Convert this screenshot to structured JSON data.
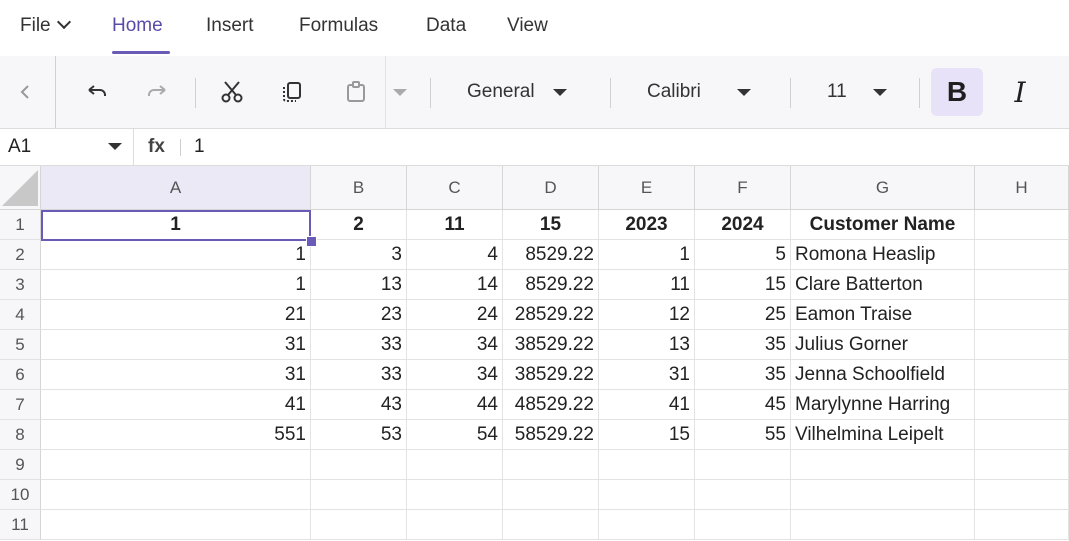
{
  "menu": {
    "file": "File",
    "tabs": [
      "Home",
      "Insert",
      "Formulas",
      "Data",
      "View"
    ],
    "active": "Home"
  },
  "toolbar": {
    "number_format": "General",
    "font_name": "Calibri",
    "font_size": "11",
    "bold_label": "B",
    "italic_label": "I",
    "icons": [
      "chevron-left-icon",
      "undo-icon",
      "redo-icon",
      "cut-icon",
      "copy-icon",
      "paste-icon"
    ]
  },
  "formula_bar": {
    "cell_ref": "A1",
    "fx_label": "fx",
    "value": "1"
  },
  "sheet": {
    "columns": [
      "A",
      "B",
      "C",
      "D",
      "E",
      "F",
      "G",
      "H"
    ],
    "rows": [
      "1",
      "2",
      "3",
      "4",
      "5",
      "6",
      "7",
      "8",
      "9",
      "10",
      "11"
    ],
    "header_row": [
      "1",
      "2",
      "11",
      "15",
      "2023",
      "2024",
      "Customer Name",
      ""
    ],
    "data": [
      [
        "1",
        "3",
        "4",
        "8529.22",
        "1",
        "5",
        "Romona Heaslip",
        ""
      ],
      [
        "1",
        "13",
        "14",
        "8529.22",
        "11",
        "15",
        "Clare Batterton",
        ""
      ],
      [
        "21",
        "23",
        "24",
        "28529.22",
        "12",
        "25",
        "Eamon Traise",
        ""
      ],
      [
        "31",
        "33",
        "34",
        "38529.22",
        "13",
        "35",
        "Julius Gorner",
        ""
      ],
      [
        "31",
        "33",
        "34",
        "38529.22",
        "31",
        "35",
        "Jenna Schoolfield",
        ""
      ],
      [
        "41",
        "43",
        "44",
        "48529.22",
        "41",
        "45",
        "Marylynne Harring",
        ""
      ],
      [
        "551",
        "53",
        "54",
        "58529.22",
        "15",
        "55",
        "Vilhelmina Leipelt",
        ""
      ],
      [
        "",
        "",
        "",
        "",
        "",
        "",
        "",
        ""
      ],
      [
        "",
        "",
        "",
        "",
        "",
        "",
        "",
        ""
      ],
      [
        "",
        "",
        "",
        "",
        "",
        "",
        "",
        ""
      ]
    ],
    "selected_cell": "A1",
    "accent_color": "#6b5bb8"
  }
}
